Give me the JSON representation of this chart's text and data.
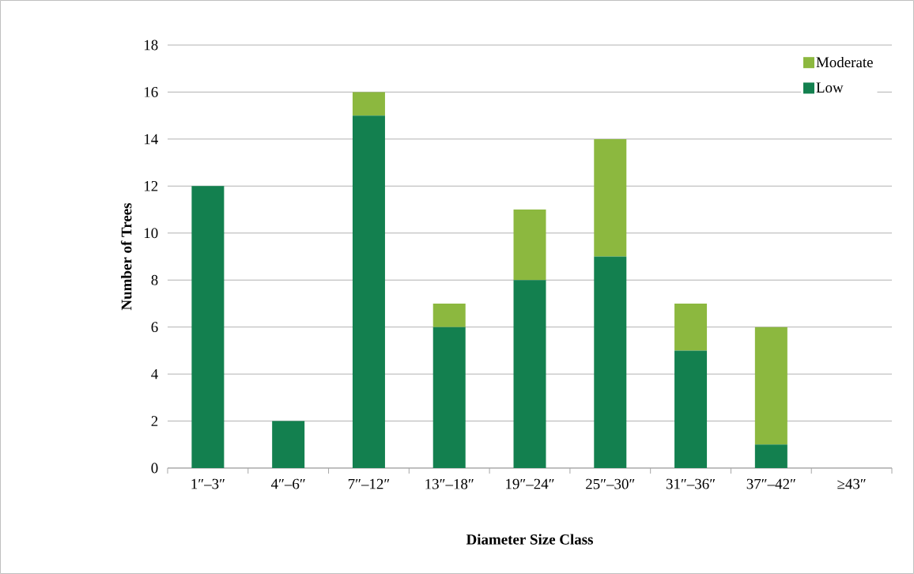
{
  "chart_data": {
    "type": "bar",
    "stacked": true,
    "xlabel": "Diameter Size Class",
    "ylabel": "Number of Trees",
    "categories": [
      "1″–3″",
      "4″–6″",
      "7″–12″",
      "13″–18″",
      "19″–24″",
      "25″–30″",
      "31″–36″",
      "37″–42″",
      "≥43″"
    ],
    "series": [
      {
        "name": "Low",
        "color": "#13804f",
        "values": [
          12,
          2,
          15,
          6,
          8,
          9,
          5,
          1,
          0
        ]
      },
      {
        "name": "Moderate",
        "color": "#8cb83f",
        "values": [
          0,
          0,
          1,
          1,
          3,
          5,
          2,
          5,
          0
        ]
      }
    ],
    "ylim": [
      0,
      18
    ],
    "yticks": [
      0,
      2,
      4,
      6,
      8,
      10,
      12,
      14,
      16,
      18
    ],
    "grid": "y",
    "legend": "top right"
  }
}
